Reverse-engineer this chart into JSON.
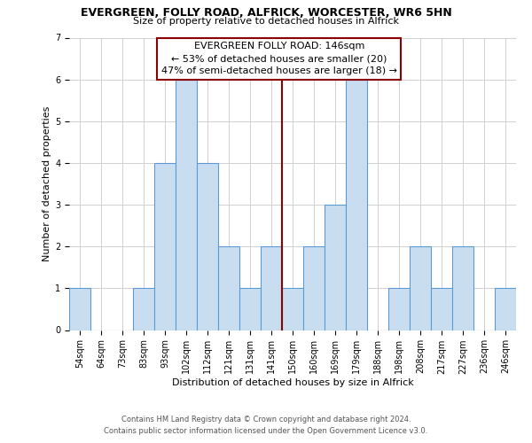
{
  "title1": "EVERGREEN, FOLLY ROAD, ALFRICK, WORCESTER, WR6 5HN",
  "title2": "Size of property relative to detached houses in Alfrick",
  "xlabel": "Distribution of detached houses by size in Alfrick",
  "ylabel": "Number of detached properties",
  "footer1": "Contains HM Land Registry data © Crown copyright and database right 2024.",
  "footer2": "Contains public sector information licensed under the Open Government Licence v3.0.",
  "bin_labels": [
    "54sqm",
    "64sqm",
    "73sqm",
    "83sqm",
    "93sqm",
    "102sqm",
    "112sqm",
    "121sqm",
    "131sqm",
    "141sqm",
    "150sqm",
    "160sqm",
    "169sqm",
    "179sqm",
    "188sqm",
    "198sqm",
    "208sqm",
    "217sqm",
    "227sqm",
    "236sqm",
    "246sqm"
  ],
  "bar_heights": [
    1,
    0,
    0,
    1,
    4,
    6,
    4,
    2,
    1,
    2,
    1,
    2,
    3,
    6,
    0,
    1,
    2,
    1,
    2,
    0,
    1
  ],
  "bar_color": "#c9ddf0",
  "bar_edge_color": "#5b9bd5",
  "ylim_max": 7,
  "yticks": [
    0,
    1,
    2,
    3,
    4,
    5,
    6,
    7
  ],
  "vline_x_index": 9.5,
  "annotation_line1": "EVERGREEN FOLLY ROAD: 146sqm",
  "annotation_line2": "← 53% of detached houses are smaller (20)",
  "annotation_line3": "47% of semi-detached houses are larger (18) →",
  "annotation_box_edgecolor": "#8b0000",
  "vline_color": "#8b0000",
  "background_color": "#ffffff",
  "grid_color": "#d0d0d0",
  "title_fontsize": 9,
  "subtitle_fontsize": 8,
  "xlabel_fontsize": 8,
  "ylabel_fontsize": 8,
  "tick_fontsize": 7,
  "footer_fontsize": 6,
  "annotation_fontsize": 8
}
